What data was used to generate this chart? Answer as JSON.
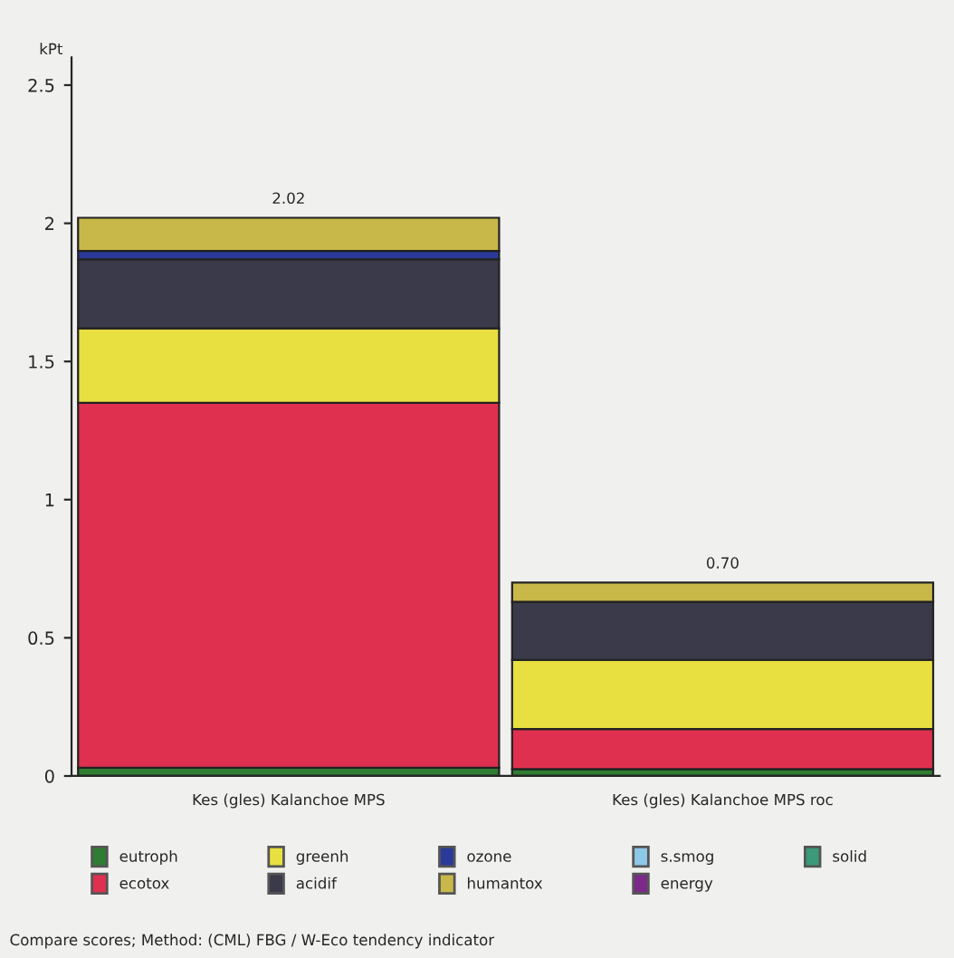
{
  "chart_data": {
    "type": "bar",
    "stacked": true,
    "ylabel": "kPt",
    "categories": [
      "Kes (gles) Kalanchoe MPS",
      "Kes (gles) Kalanchoe MPS roc"
    ],
    "series": [
      {
        "name": "eutroph",
        "color": "#2e7d32",
        "values": [
          0.03,
          0.025
        ]
      },
      {
        "name": "ecotox",
        "color": "#e0304f",
        "values": [
          1.32,
          0.145
        ]
      },
      {
        "name": "greenh",
        "color": "#e8e040",
        "values": [
          0.27,
          0.25
        ]
      },
      {
        "name": "acidif",
        "color": "#3a3a4a",
        "values": [
          0.25,
          0.21
        ]
      },
      {
        "name": "ozone",
        "color": "#2b3a9a",
        "values": [
          0.03,
          null
        ]
      },
      {
        "name": "humantox",
        "color": "#c8b84a",
        "values": [
          0.12,
          0.07
        ]
      },
      {
        "name": "s.smog",
        "color": "#8ec8e8",
        "values": [
          null,
          null
        ]
      },
      {
        "name": "energy",
        "color": "#7b2a8a",
        "values": [
          null,
          null
        ]
      },
      {
        "name": "solid",
        "color": "#3a9a7a",
        "values": [
          null,
          null
        ]
      }
    ],
    "totals": [
      "2.02",
      "0.70"
    ],
    "ylim": [
      0,
      2.6
    ],
    "yticks": [
      0,
      {
        "value": 0.5,
        "label": "0.5"
      },
      1,
      1.5,
      2,
      2.5
    ],
    "grid": false,
    "legend": "bottom",
    "annotations": [
      "Compare scores; Method: (CML) FBG / W-Eco tendency indicator"
    ]
  }
}
